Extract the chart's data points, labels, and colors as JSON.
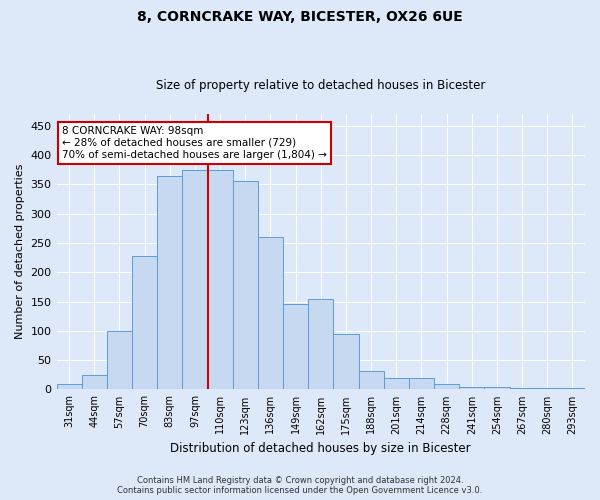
{
  "title_line1": "8, CORNCRAKE WAY, BICESTER, OX26 6UE",
  "title_line2": "Size of property relative to detached houses in Bicester",
  "xlabel": "Distribution of detached houses by size in Bicester",
  "ylabel": "Number of detached properties",
  "categories": [
    "31sqm",
    "44sqm",
    "57sqm",
    "70sqm",
    "83sqm",
    "97sqm",
    "110sqm",
    "123sqm",
    "136sqm",
    "149sqm",
    "162sqm",
    "175sqm",
    "188sqm",
    "201sqm",
    "214sqm",
    "228sqm",
    "241sqm",
    "254sqm",
    "267sqm",
    "280sqm",
    "293sqm"
  ],
  "values": [
    10,
    25,
    100,
    228,
    365,
    375,
    375,
    355,
    260,
    145,
    155,
    95,
    32,
    20,
    20,
    10,
    5,
    5,
    3,
    2,
    3
  ],
  "bar_color": "#c6d9f1",
  "bar_edge_color": "#5b9bd5",
  "highlight_index": 5,
  "annotation_line1": "8 CORNCRAKE WAY: 98sqm",
  "annotation_line2": "← 28% of detached houses are smaller (729)",
  "annotation_line3": "70% of semi-detached houses are larger (1,804) →",
  "annotation_box_facecolor": "#ffffff",
  "annotation_box_edgecolor": "#cc0000",
  "footer_line1": "Contains HM Land Registry data © Crown copyright and database right 2024.",
  "footer_line2": "Contains public sector information licensed under the Open Government Licence v3.0.",
  "background_color": "#dde8f8",
  "plot_bg_color": "#dde8f8",
  "grid_color": "#ffffff",
  "ylim": [
    0,
    470
  ],
  "yticks": [
    0,
    50,
    100,
    150,
    200,
    250,
    300,
    350,
    400,
    450
  ]
}
